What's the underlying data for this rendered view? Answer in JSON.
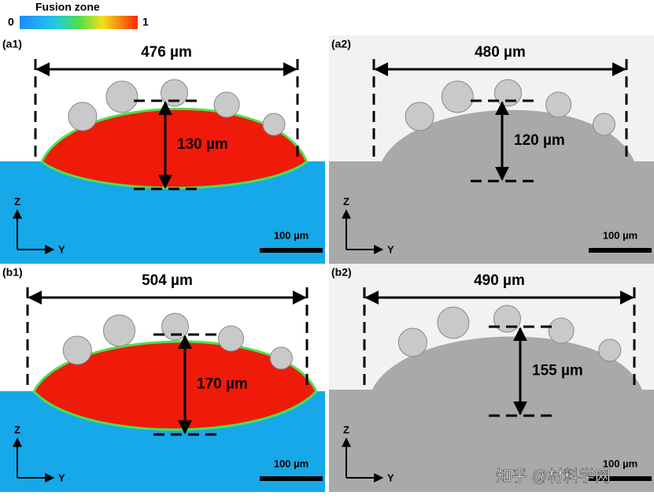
{
  "colorbar": {
    "title": "Fusion zone",
    "min_label": "0",
    "max_label": "1"
  },
  "panels": [
    {
      "label": "(a1)",
      "width_label": "476 µm",
      "height_label": "130 µm",
      "scale_label": "100 µm",
      "z_label": "Z",
      "y_label": "Y"
    },
    {
      "label": "(a2)",
      "width_label": "480 µm",
      "height_label": "120 µm",
      "scale_label": "100 µm",
      "z_label": "Z",
      "y_label": "Y"
    },
    {
      "label": "(b1)",
      "width_label": "504 µm",
      "height_label": "170 µm",
      "scale_label": "100 µm",
      "z_label": "Z",
      "y_label": "Y"
    },
    {
      "label": "(b2)",
      "width_label": "490 µm",
      "height_label": "155 µm",
      "scale_label": "100 µm",
      "z_label": "Z",
      "y_label": "Y"
    }
  ],
  "watermark": "知乎 @材料学网"
}
